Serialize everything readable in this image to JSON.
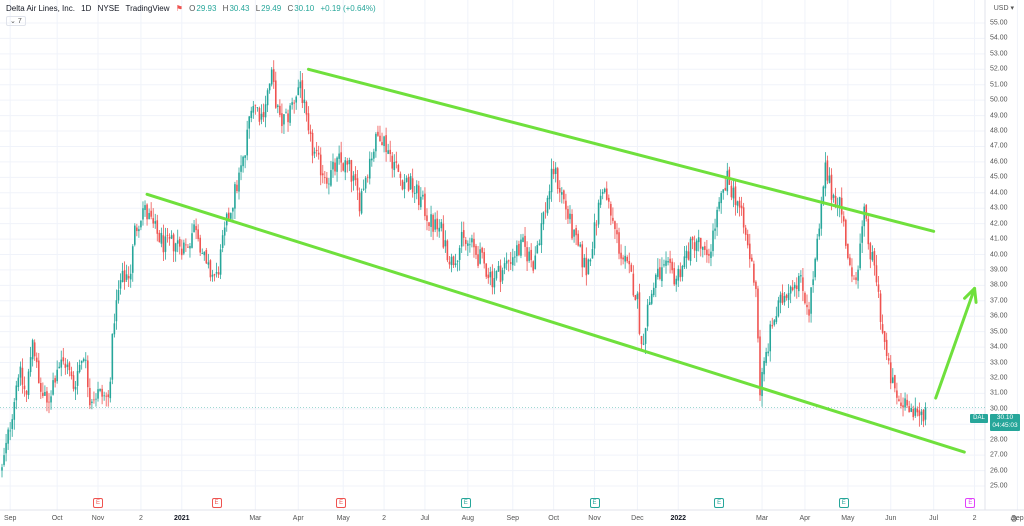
{
  "header": {
    "name": "Delta Air Lines, Inc.",
    "interval": "1D",
    "exchange": "NYSE",
    "source": "TradingView",
    "ohlc": {
      "o_label": "O",
      "o": "29.93",
      "h_label": "H",
      "h": "30.43",
      "l_label": "L",
      "l": "29.49",
      "c_label": "C",
      "c": "30.10",
      "change": "+0.19 (+0.64%)"
    }
  },
  "indicator_count": "7",
  "currency": "USD",
  "price_tag": {
    "symbol": "DAL",
    "price": "30.10",
    "countdown": "04:45:03"
  },
  "earnings_markers": [
    {
      "label": "E",
      "t": 47,
      "color": "#ef5350"
    },
    {
      "label": "E",
      "t": 105,
      "color": "#ef5350"
    },
    {
      "label": "E",
      "t": 166,
      "color": "#ef5350"
    },
    {
      "label": "E",
      "t": 227,
      "color": "#26a69a"
    },
    {
      "label": "E",
      "t": 290,
      "color": "#26a69a"
    },
    {
      "label": "E",
      "t": 351,
      "color": "#26a69a"
    },
    {
      "label": "E",
      "t": 412,
      "color": "#26a69a"
    },
    {
      "label": "E",
      "t": 474,
      "color": "#e040fb"
    }
  ],
  "colors": {
    "up": "#26a69a",
    "down": "#ef5350",
    "trendline": "#6fe03c",
    "price_line": "#26a69a"
  },
  "chart_data": {
    "type": "candlestick",
    "symbol": "DAL",
    "ylim": [
      25.0,
      55.0
    ],
    "y_ticks": [
      "25.00",
      "26.00",
      "27.00",
      "28.00",
      "29.00",
      "30.00",
      "31.00",
      "32.00",
      "33.00",
      "34.00",
      "35.00",
      "36.00",
      "37.00",
      "38.00",
      "39.00",
      "40.00",
      "41.00",
      "42.00",
      "43.00",
      "44.00",
      "45.00",
      "46.00",
      "47.00",
      "48.00",
      "49.00",
      "50.00",
      "51.00",
      "52.00",
      "53.00",
      "54.00",
      "55.00"
    ],
    "x_ticks": [
      {
        "label": "Sep",
        "t": 4
      },
      {
        "label": "Oct",
        "t": 27
      },
      {
        "label": "Nov",
        "t": 47
      },
      {
        "label": "2",
        "t": 68
      },
      {
        "label": "2021",
        "t": 88,
        "bold": true
      },
      {
        "label": "Mar",
        "t": 124
      },
      {
        "label": "Apr",
        "t": 145
      },
      {
        "label": "May",
        "t": 167
      },
      {
        "label": "2",
        "t": 187
      },
      {
        "label": "Jul",
        "t": 207
      },
      {
        "label": "Aug",
        "t": 228
      },
      {
        "label": "Sep",
        "t": 250
      },
      {
        "label": "Oct",
        "t": 270
      },
      {
        "label": "Nov",
        "t": 290
      },
      {
        "label": "Dec",
        "t": 311
      },
      {
        "label": "2022",
        "t": 331,
        "bold": true
      },
      {
        "label": "Mar",
        "t": 372
      },
      {
        "label": "Apr",
        "t": 393
      },
      {
        "label": "May",
        "t": 414
      },
      {
        "label": "Jun",
        "t": 435
      },
      {
        "label": "Jul",
        "t": 456
      },
      {
        "label": "2",
        "t": 476
      },
      {
        "label": "Sep",
        "t": 497
      }
    ],
    "t_range": [
      0,
      510
    ],
    "last_price": 30.1,
    "price_path": [
      [
        0,
        26.0
      ],
      [
        4,
        29.0
      ],
      [
        8,
        32.5
      ],
      [
        12,
        30.8
      ],
      [
        15,
        34.8
      ],
      [
        18,
        31.5
      ],
      [
        22,
        30.2
      ],
      [
        27,
        32.8
      ],
      [
        31,
        33.0
      ],
      [
        35,
        31.5
      ],
      [
        40,
        33.8
      ],
      [
        43,
        30.8
      ],
      [
        47,
        31.0
      ],
      [
        52,
        30.6
      ],
      [
        55,
        36.0
      ],
      [
        58,
        38.2
      ],
      [
        63,
        39.0
      ],
      [
        65,
        41.5
      ],
      [
        69,
        43.0
      ],
      [
        72,
        42.3
      ],
      [
        75,
        41.5
      ],
      [
        80,
        40.5
      ],
      [
        85,
        40.8
      ],
      [
        90,
        40.5
      ],
      [
        95,
        42.0
      ],
      [
        100,
        39.0
      ],
      [
        105,
        38.5
      ],
      [
        110,
        42.0
      ],
      [
        115,
        44.5
      ],
      [
        119,
        46.5
      ],
      [
        122,
        50.0
      ],
      [
        127,
        49.0
      ],
      [
        132,
        51.5
      ],
      [
        136,
        48.5
      ],
      [
        140,
        49.0
      ],
      [
        146,
        51.2
      ],
      [
        150,
        47.5
      ],
      [
        155,
        45.8
      ],
      [
        160,
        45.0
      ],
      [
        165,
        46.0
      ],
      [
        170,
        45.5
      ],
      [
        175,
        43.5
      ],
      [
        180,
        46.2
      ],
      [
        185,
        48.0
      ],
      [
        190,
        46.5
      ],
      [
        195,
        45.0
      ],
      [
        200,
        44.5
      ],
      [
        205,
        43.5
      ],
      [
        210,
        42.0
      ],
      [
        215,
        41.5
      ],
      [
        220,
        39.5
      ],
      [
        225,
        40.8
      ],
      [
        230,
        40.5
      ],
      [
        235,
        39.5
      ],
      [
        240,
        38.5
      ],
      [
        245,
        39.0
      ],
      [
        250,
        40.0
      ],
      [
        255,
        40.5
      ],
      [
        260,
        39.5
      ],
      [
        265,
        42.5
      ],
      [
        270,
        45.5
      ],
      [
        275,
        43.5
      ],
      [
        280,
        41.0
      ],
      [
        286,
        39.0
      ],
      [
        290,
        41.5
      ],
      [
        294,
        44.5
      ],
      [
        298,
        42.5
      ],
      [
        303,
        40.0
      ],
      [
        308,
        38.5
      ],
      [
        311,
        37.0
      ],
      [
        313,
        34.0
      ],
      [
        316,
        36.5
      ],
      [
        320,
        38.5
      ],
      [
        325,
        39.0
      ],
      [
        330,
        38.5
      ],
      [
        335,
        40.0
      ],
      [
        340,
        41.0
      ],
      [
        345,
        39.5
      ],
      [
        350,
        42.5
      ],
      [
        355,
        44.8
      ],
      [
        360,
        43.5
      ],
      [
        365,
        40.5
      ],
      [
        369,
        38.0
      ],
      [
        371,
        31.2
      ],
      [
        374,
        33.5
      ],
      [
        377,
        35.5
      ],
      [
        380,
        36.5
      ],
      [
        385,
        38.0
      ],
      [
        390,
        38.5
      ],
      [
        395,
        36.5
      ],
      [
        400,
        41.5
      ],
      [
        403,
        45.5
      ],
      [
        406,
        44.0
      ],
      [
        410,
        43.5
      ],
      [
        413,
        41.0
      ],
      [
        416,
        38.0
      ],
      [
        419,
        39.5
      ],
      [
        422,
        42.5
      ],
      [
        425,
        40.0
      ],
      [
        428,
        38.5
      ],
      [
        431,
        35.0
      ],
      [
        434,
        32.5
      ],
      [
        437,
        31.0
      ],
      [
        440,
        30.2
      ],
      [
        443,
        30.8
      ],
      [
        446,
        29.5
      ],
      [
        449,
        29.4
      ],
      [
        452,
        30.1
      ]
    ],
    "trendlines": [
      {
        "t1": 150,
        "p1": 52.0,
        "t2": 456,
        "p2": 41.5,
        "color": "#6fe03c"
      },
      {
        "t1": 71,
        "p1": 43.9,
        "t2": 471,
        "p2": 27.2,
        "color": "#6fe03c"
      }
    ],
    "projection_arrow": {
      "t1": 457,
      "p1": 30.7,
      "t2": 476,
      "p2": 37.8,
      "color": "#6fe03c"
    }
  }
}
